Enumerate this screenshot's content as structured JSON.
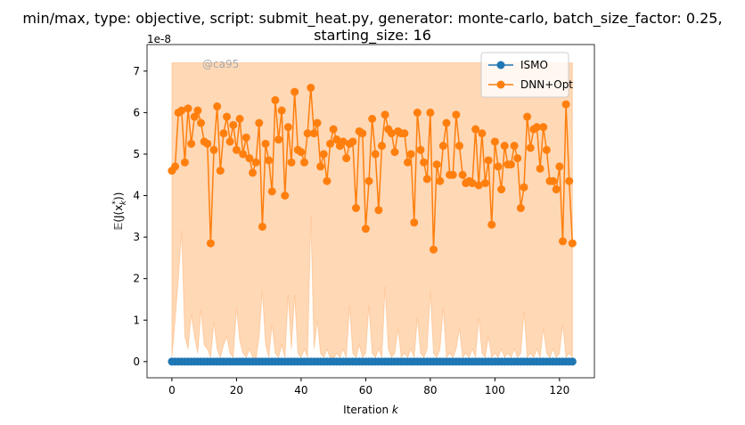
{
  "chart_data": {
    "type": "line",
    "title": [
      "min/max, type: objective, script: submit_heat.py, generator: monte-carlo, batch_size_factor: 0.25,",
      "starting_size: 16"
    ],
    "x_label": [
      "Iteration ",
      "k"
    ],
    "y_label": [
      "𝔼(J(x",
      "*",
      "k",
      "))"
    ],
    "y_offset_label": "1e-8",
    "watermark": "@ca95",
    "xlim": [
      -7.7,
      130.8
    ],
    "ylim": [
      -0.39,
      7.64
    ],
    "xticks": [
      0,
      20,
      40,
      60,
      80,
      100,
      120
    ],
    "yticks": [
      0,
      1,
      2,
      3,
      4,
      5,
      6,
      7
    ],
    "legend": "upper right",
    "x": [
      0,
      1,
      2,
      3,
      4,
      5,
      6,
      7,
      8,
      9,
      10,
      11,
      12,
      13,
      14,
      15,
      16,
      17,
      18,
      19,
      20,
      21,
      22,
      23,
      24,
      25,
      26,
      27,
      28,
      29,
      30,
      31,
      32,
      33,
      34,
      35,
      36,
      37,
      38,
      39,
      40,
      41,
      42,
      43,
      44,
      45,
      46,
      47,
      48,
      49,
      50,
      51,
      52,
      53,
      54,
      55,
      56,
      57,
      58,
      59,
      60,
      61,
      62,
      63,
      64,
      65,
      66,
      67,
      68,
      69,
      70,
      71,
      72,
      73,
      74,
      75,
      76,
      77,
      78,
      79,
      80,
      81,
      82,
      83,
      84,
      85,
      86,
      87,
      88,
      89,
      90,
      91,
      92,
      93,
      94,
      95,
      96,
      97,
      98,
      99,
      100,
      101,
      102,
      103,
      104,
      105,
      106,
      107,
      108,
      109,
      110,
      111,
      112,
      113,
      114,
      115,
      116,
      117,
      118,
      119,
      120,
      121,
      122,
      123,
      124
    ],
    "band": {
      "color": "#ff7f0e",
      "upper": [
        7.2,
        7.2,
        7.2,
        7.2,
        7.2,
        7.2,
        7.2,
        7.2,
        7.2,
        7.2,
        7.2,
        7.2,
        7.2,
        7.2,
        7.2,
        7.2,
        7.2,
        7.2,
        7.2,
        7.2,
        7.2,
        7.2,
        7.2,
        7.2,
        7.2,
        7.2,
        7.2,
        7.2,
        7.2,
        7.2,
        7.2,
        7.2,
        7.2,
        7.2,
        7.2,
        7.2,
        7.2,
        7.2,
        7.2,
        7.2,
        7.2,
        7.2,
        7.2,
        7.2,
        7.2,
        7.2,
        7.2,
        7.2,
        7.2,
        7.2,
        7.2,
        7.2,
        7.2,
        7.2,
        7.2,
        7.2,
        7.2,
        7.2,
        7.2,
        7.2,
        7.2,
        7.2,
        7.2,
        7.2,
        7.2,
        7.2,
        7.2,
        7.2,
        7.2,
        7.2,
        7.2,
        7.2,
        7.2,
        7.2,
        7.2,
        7.2,
        7.2,
        7.2,
        7.2,
        7.2,
        7.2,
        7.2,
        7.2,
        7.2,
        7.2,
        7.2,
        7.2,
        7.2,
        7.2,
        7.2,
        7.2,
        7.2,
        7.2,
        7.2,
        7.2,
        7.2,
        7.2,
        7.2,
        7.2,
        7.2,
        7.2,
        7.2,
        7.2,
        7.2,
        7.2,
        7.2,
        7.2,
        7.2,
        7.2,
        7.2,
        7.2,
        7.2,
        7.2,
        7.2,
        7.2,
        7.2,
        7.2,
        7.2,
        7.2,
        7.2,
        7.2,
        7.2,
        7.2,
        7.2,
        7.2
      ],
      "lower": [
        0.1,
        1.0,
        2.0,
        3.15,
        0.6,
        0.3,
        1.15,
        0.6,
        0.2,
        1.25,
        0.4,
        0.3,
        0.1,
        0.95,
        0.3,
        0.1,
        0.4,
        0.6,
        0.2,
        0.1,
        1.3,
        0.5,
        0.2,
        0.1,
        0.3,
        0.1,
        0.05,
        0.6,
        1.7,
        0.4,
        0.1,
        0.9,
        0.2,
        0.1,
        0.4,
        0.1,
        1.6,
        0.3,
        1.6,
        0.2,
        0.1,
        0.3,
        0.1,
        3.5,
        0.3,
        1.0,
        0.2,
        0.1,
        0.3,
        0.1,
        0.05,
        0.2,
        0.1,
        0.3,
        0.1,
        1.35,
        0.2,
        0.1,
        0.4,
        0.1,
        0.2,
        1.35,
        0.2,
        0.1,
        0.3,
        0.1,
        1.8,
        0.3,
        0.1,
        0.2,
        0.8,
        0.1,
        0.2,
        0.1,
        0.3,
        0.1,
        1.05,
        0.2,
        0.1,
        0.3,
        1.7,
        0.2,
        0.1,
        0.3,
        1.3,
        0.1,
        0.2,
        0.1,
        0.3,
        0.8,
        0.1,
        0.2,
        0.1,
        0.3,
        0.1,
        1.05,
        0.2,
        0.1,
        0.6,
        0.1,
        0.2,
        0.1,
        0.3,
        0.1,
        0.2,
        0.1,
        0.3,
        0.1,
        0.2,
        1.2,
        0.1,
        0.2,
        0.1,
        0.3,
        0.1,
        0.8,
        0.2,
        0.1,
        0.3,
        0.1,
        0.2,
        0.9,
        0.1,
        0.2,
        0.1
      ]
    },
    "series": [
      {
        "name": "ISMO",
        "color": "#1f77b4",
        "values": [
          0,
          0,
          0,
          0,
          0,
          0,
          0,
          0,
          0,
          0,
          0,
          0,
          0,
          0,
          0,
          0,
          0,
          0,
          0,
          0,
          0,
          0,
          0,
          0,
          0,
          0,
          0,
          0,
          0,
          0,
          0,
          0,
          0,
          0,
          0,
          0,
          0,
          0,
          0,
          0,
          0,
          0,
          0,
          0,
          0,
          0,
          0,
          0,
          0,
          0,
          0,
          0,
          0,
          0,
          0,
          0,
          0,
          0,
          0,
          0,
          0,
          0,
          0,
          0,
          0,
          0,
          0,
          0,
          0,
          0,
          0,
          0,
          0,
          0,
          0,
          0,
          0,
          0,
          0,
          0,
          0,
          0,
          0,
          0,
          0,
          0,
          0,
          0,
          0,
          0,
          0,
          0,
          0,
          0,
          0,
          0,
          0,
          0,
          0,
          0,
          0,
          0,
          0,
          0,
          0,
          0,
          0,
          0,
          0,
          0,
          0,
          0,
          0,
          0,
          0,
          0,
          0,
          0,
          0,
          0,
          0,
          0,
          0,
          0,
          0
        ]
      },
      {
        "name": "DNN+Opt",
        "color": "#ff7f0e",
        "values": [
          4.6,
          4.7,
          6.0,
          6.05,
          4.8,
          6.1,
          5.25,
          5.9,
          6.05,
          5.75,
          5.3,
          5.25,
          2.85,
          5.1,
          6.15,
          4.6,
          5.5,
          5.9,
          5.3,
          5.7,
          5.1,
          5.85,
          5.0,
          5.4,
          4.9,
          4.55,
          4.8,
          5.75,
          3.25,
          5.25,
          4.85,
          4.1,
          6.3,
          5.35,
          6.05,
          4.0,
          5.65,
          4.8,
          6.5,
          5.1,
          5.05,
          4.8,
          5.5,
          6.6,
          5.5,
          5.75,
          4.7,
          5.0,
          4.35,
          5.25,
          5.6,
          5.35,
          5.2,
          5.3,
          4.9,
          5.25,
          5.3,
          3.7,
          5.55,
          5.5,
          3.2,
          4.35,
          5.85,
          5.0,
          3.65,
          5.2,
          5.95,
          5.6,
          5.5,
          5.05,
          5.55,
          5.5,
          5.5,
          4.8,
          5.0,
          3.35,
          6.0,
          5.1,
          4.8,
          4.4,
          6.0,
          2.7,
          4.75,
          4.35,
          5.2,
          5.75,
          4.5,
          4.5,
          5.95,
          5.2,
          4.5,
          4.3,
          4.35,
          4.3,
          5.6,
          4.25,
          5.5,
          4.3,
          4.85,
          3.3,
          5.3,
          4.7,
          4.15,
          5.2,
          4.75,
          4.75,
          5.2,
          4.9,
          3.7,
          4.2,
          5.9,
          5.15,
          5.6,
          5.65,
          4.65,
          5.65,
          5.1,
          4.35,
          4.35,
          4.15,
          4.7,
          2.9,
          6.2,
          4.35,
          2.85
        ]
      }
    ]
  }
}
